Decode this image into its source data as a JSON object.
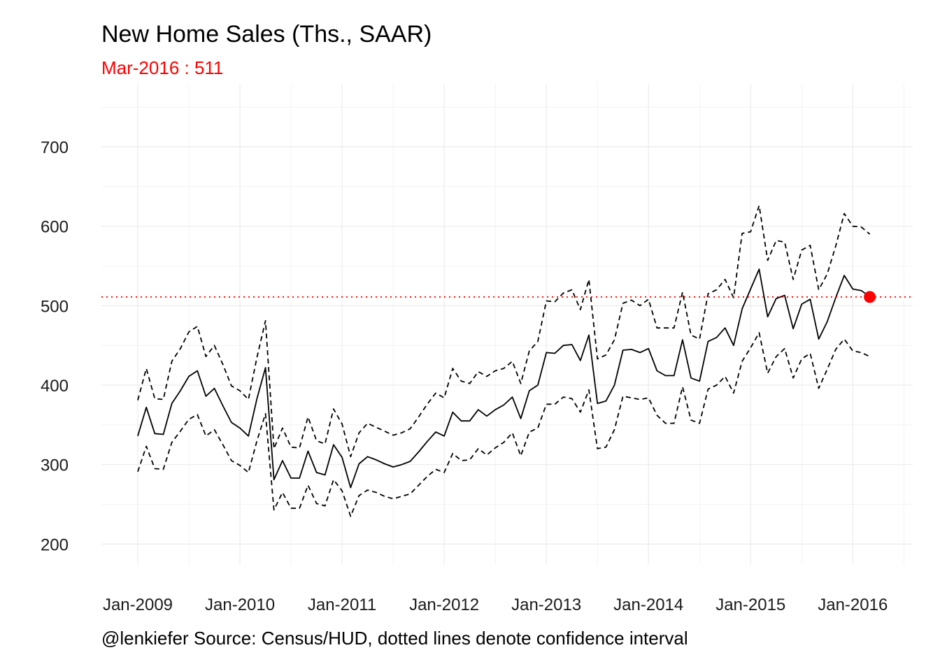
{
  "title": "New Home Sales (Ths., SAAR)",
  "subtitle": "Mar-2016 : 511",
  "caption": "@lenkiefer Source: Census/HUD, dotted lines denote confidence interval",
  "colors": {
    "highlight": "#ff0000",
    "line": "#000000",
    "grid": "#ebebeb"
  },
  "chart_data": {
    "type": "line",
    "title": "New Home Sales (Ths., SAAR)",
    "xlabel": "",
    "ylabel": "",
    "ylim": [
      175,
      765
    ],
    "x_ticks": [
      "Jan-2009",
      "Jan-2010",
      "Jan-2011",
      "Jan-2012",
      "Jan-2013",
      "Jan-2014",
      "Jan-2015",
      "Jan-2016"
    ],
    "y_ticks": [
      200,
      300,
      400,
      500,
      600,
      700
    ],
    "grid": true,
    "reference_line": {
      "value": 511,
      "style": "dotted",
      "color": "#ff0000"
    },
    "highlight_point": {
      "x": "Mar-2016",
      "y": 511
    },
    "x": [
      "Jan-2009",
      "Feb-2009",
      "Mar-2009",
      "Apr-2009",
      "May-2009",
      "Jun-2009",
      "Jul-2009",
      "Aug-2009",
      "Sep-2009",
      "Oct-2009",
      "Nov-2009",
      "Dec-2009",
      "Jan-2010",
      "Feb-2010",
      "Mar-2010",
      "Apr-2010",
      "May-2010",
      "Jun-2010",
      "Jul-2010",
      "Aug-2010",
      "Sep-2010",
      "Oct-2010",
      "Nov-2010",
      "Dec-2010",
      "Jan-2011",
      "Feb-2011",
      "Mar-2011",
      "Apr-2011",
      "May-2011",
      "Jun-2011",
      "Jul-2011",
      "Aug-2011",
      "Sep-2011",
      "Oct-2011",
      "Nov-2011",
      "Dec-2011",
      "Jan-2012",
      "Feb-2012",
      "Mar-2012",
      "Apr-2012",
      "May-2012",
      "Jun-2012",
      "Jul-2012",
      "Aug-2012",
      "Sep-2012",
      "Oct-2012",
      "Nov-2012",
      "Dec-2012",
      "Jan-2013",
      "Feb-2013",
      "Mar-2013",
      "Apr-2013",
      "May-2013",
      "Jun-2013",
      "Jul-2013",
      "Aug-2013",
      "Sep-2013",
      "Oct-2013",
      "Nov-2013",
      "Dec-2013",
      "Jan-2014",
      "Feb-2014",
      "Mar-2014",
      "Apr-2014",
      "May-2014",
      "Jun-2014",
      "Jul-2014",
      "Aug-2014",
      "Sep-2014",
      "Oct-2014",
      "Nov-2014",
      "Dec-2014",
      "Jan-2015",
      "Feb-2015",
      "Mar-2015",
      "Apr-2015",
      "May-2015",
      "Jun-2015",
      "Jul-2015",
      "Aug-2015",
      "Sep-2015",
      "Oct-2015",
      "Nov-2015",
      "Dec-2015",
      "Jan-2016",
      "Feb-2016",
      "Mar-2016"
    ],
    "series": [
      {
        "name": "New Home Sales",
        "style": "solid",
        "values": [
          336,
          372,
          339,
          338,
          377,
          393,
          411,
          418,
          386,
          396,
          374,
          353,
          346,
          336,
          383,
          422,
          281,
          305,
          283,
          283,
          317,
          290,
          287,
          325,
          309,
          271,
          301,
          310,
          306,
          301,
          297,
          300,
          304,
          316,
          329,
          341,
          336,
          366,
          355,
          355,
          369,
          361,
          369,
          375,
          385,
          358,
          393,
          400,
          441,
          440,
          450,
          451,
          431,
          463,
          377,
          380,
          400,
          444,
          445,
          441,
          446,
          418,
          412,
          412,
          457,
          409,
          405,
          455,
          460,
          472,
          450,
          496,
          521,
          546,
          486,
          509,
          513,
          471,
          502,
          508,
          458,
          480,
          510,
          538,
          521,
          519,
          511
        ]
      },
      {
        "name": "Upper confidence bound",
        "style": "dashed",
        "values": [
          381,
          421,
          383,
          382,
          430,
          446,
          467,
          474,
          436,
          450,
          426,
          399,
          393,
          382,
          435,
          481,
          320,
          346,
          322,
          321,
          360,
          330,
          326,
          370,
          351,
          310,
          340,
          352,
          347,
          342,
          337,
          340,
          345,
          360,
          376,
          390,
          384,
          421,
          405,
          402,
          417,
          411,
          418,
          421,
          430,
          402,
          443,
          455,
          506,
          505,
          516,
          520,
          495,
          533,
          433,
          438,
          457,
          503,
          507,
          500,
          508,
          472,
          472,
          472,
          517,
          463,
          458,
          515,
          520,
          533,
          510,
          591,
          593,
          626,
          557,
          582,
          580,
          533,
          570,
          576,
          520,
          540,
          575,
          616,
          600,
          599,
          590
        ]
      },
      {
        "name": "Lower confidence bound",
        "style": "dashed",
        "values": [
          291,
          323,
          295,
          294,
          328,
          342,
          357,
          363,
          336,
          344,
          325,
          305,
          299,
          290,
          330,
          364,
          243,
          265,
          245,
          245,
          274,
          251,
          248,
          281,
          267,
          235,
          261,
          268,
          265,
          260,
          257,
          260,
          263,
          274,
          285,
          294,
          290,
          314,
          305,
          306,
          320,
          312,
          321,
          328,
          340,
          311,
          341,
          346,
          376,
          376,
          385,
          383,
          366,
          394,
          320,
          322,
          344,
          386,
          384,
          382,
          384,
          362,
          352,
          352,
          398,
          356,
          352,
          395,
          400,
          411,
          390,
          430,
          447,
          466,
          415,
          436,
          446,
          409,
          433,
          440,
          396,
          420,
          445,
          458,
          443,
          441,
          436
        ]
      }
    ]
  }
}
